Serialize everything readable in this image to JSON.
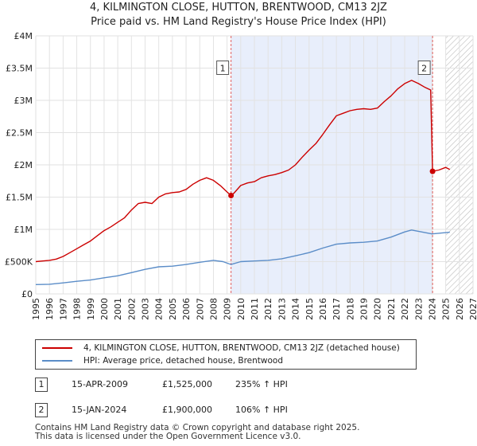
{
  "title": "4, KILMINGTON CLOSE, HUTTON, BRENTWOOD, CM13 2JZ",
  "subtitle": "Price paid vs. HM Land Registry's House Price Index (HPI)",
  "colors": {
    "property": "#cc0000",
    "hpi": "#5b8dc8",
    "shade": "#e8eefb",
    "marker_line": "#e06060"
  },
  "chart_data": {
    "type": "line",
    "title": "4, KILMINGTON CLOSE, HUTTON, BRENTWOOD, CM13 2JZ",
    "subtitle": "Price paid vs. HM Land Registry's House Price Index (HPI)",
    "xlim": [
      1995,
      2027
    ],
    "ylim": [
      0,
      4000000
    ],
    "x_ticks": [
      "1995",
      "1996",
      "1997",
      "1998",
      "1999",
      "2000",
      "2001",
      "2002",
      "2003",
      "2004",
      "2005",
      "2006",
      "2007",
      "2008",
      "2009",
      "2010",
      "2011",
      "2012",
      "2013",
      "2014",
      "2015",
      "2016",
      "2017",
      "2018",
      "2019",
      "2020",
      "2021",
      "2022",
      "2023",
      "2024",
      "2025",
      "2026",
      "2027"
    ],
    "y_ticks": [
      {
        "value": 0,
        "label": "£0"
      },
      {
        "value": 500000,
        "label": "£500K"
      },
      {
        "value": 1000000,
        "label": "£1M"
      },
      {
        "value": 1500000,
        "label": "£1.5M"
      },
      {
        "value": 2000000,
        "label": "£2M"
      },
      {
        "value": 2500000,
        "label": "£2.5M"
      },
      {
        "value": 3000000,
        "label": "£3M"
      },
      {
        "value": 3500000,
        "label": "£3.5M"
      },
      {
        "value": 4000000,
        "label": "£4M"
      }
    ],
    "grid": true,
    "shaded_period": [
      2009.29,
      2024.04
    ],
    "hatched_from": 2025.0,
    "series": [
      {
        "name": "4, KILMINGTON CLOSE, HUTTON, BRENTWOOD, CM13 2JZ (detached house)",
        "color": "#cc0000",
        "points": [
          [
            1995.0,
            500000
          ],
          [
            1995.5,
            510000
          ],
          [
            1996.0,
            520000
          ],
          [
            1996.5,
            540000
          ],
          [
            1997.0,
            580000
          ],
          [
            1997.5,
            640000
          ],
          [
            1998.0,
            700000
          ],
          [
            1998.5,
            760000
          ],
          [
            1999.0,
            820000
          ],
          [
            1999.5,
            900000
          ],
          [
            2000.0,
            980000
          ],
          [
            2000.5,
            1040000
          ],
          [
            2001.0,
            1110000
          ],
          [
            2001.5,
            1180000
          ],
          [
            2002.0,
            1300000
          ],
          [
            2002.5,
            1400000
          ],
          [
            2003.0,
            1420000
          ],
          [
            2003.5,
            1400000
          ],
          [
            2004.0,
            1500000
          ],
          [
            2004.5,
            1550000
          ],
          [
            2005.0,
            1570000
          ],
          [
            2005.5,
            1580000
          ],
          [
            2006.0,
            1620000
          ],
          [
            2006.5,
            1700000
          ],
          [
            2007.0,
            1760000
          ],
          [
            2007.5,
            1800000
          ],
          [
            2008.0,
            1760000
          ],
          [
            2008.5,
            1680000
          ],
          [
            2009.0,
            1580000
          ],
          [
            2009.29,
            1525000
          ],
          [
            2009.5,
            1560000
          ],
          [
            2010.0,
            1680000
          ],
          [
            2010.5,
            1720000
          ],
          [
            2011.0,
            1740000
          ],
          [
            2011.5,
            1800000
          ],
          [
            2012.0,
            1830000
          ],
          [
            2012.5,
            1850000
          ],
          [
            2013.0,
            1880000
          ],
          [
            2013.5,
            1920000
          ],
          [
            2014.0,
            2000000
          ],
          [
            2014.5,
            2120000
          ],
          [
            2015.0,
            2230000
          ],
          [
            2015.5,
            2330000
          ],
          [
            2016.0,
            2470000
          ],
          [
            2016.5,
            2620000
          ],
          [
            2017.0,
            2760000
          ],
          [
            2017.5,
            2800000
          ],
          [
            2018.0,
            2840000
          ],
          [
            2018.5,
            2860000
          ],
          [
            2019.0,
            2870000
          ],
          [
            2019.5,
            2860000
          ],
          [
            2020.0,
            2880000
          ],
          [
            2020.5,
            2980000
          ],
          [
            2021.0,
            3070000
          ],
          [
            2021.5,
            3180000
          ],
          [
            2022.0,
            3260000
          ],
          [
            2022.5,
            3310000
          ],
          [
            2023.0,
            3260000
          ],
          [
            2023.5,
            3200000
          ],
          [
            2023.9,
            3160000
          ],
          [
            2024.04,
            1900000
          ],
          [
            2024.5,
            1920000
          ],
          [
            2025.0,
            1960000
          ],
          [
            2025.3,
            1930000
          ]
        ]
      },
      {
        "name": "HPI: Average price, detached house, Brentwood",
        "color": "#5b8dc8",
        "points": [
          [
            1995.0,
            145000
          ],
          [
            1996.0,
            150000
          ],
          [
            1997.0,
            170000
          ],
          [
            1998.0,
            195000
          ],
          [
            1999.0,
            215000
          ],
          [
            2000.0,
            250000
          ],
          [
            2001.0,
            280000
          ],
          [
            2002.0,
            330000
          ],
          [
            2003.0,
            380000
          ],
          [
            2004.0,
            420000
          ],
          [
            2005.0,
            430000
          ],
          [
            2006.0,
            455000
          ],
          [
            2007.0,
            490000
          ],
          [
            2008.0,
            520000
          ],
          [
            2008.7,
            500000
          ],
          [
            2009.29,
            455000
          ],
          [
            2010.0,
            500000
          ],
          [
            2011.0,
            510000
          ],
          [
            2012.0,
            520000
          ],
          [
            2013.0,
            545000
          ],
          [
            2014.0,
            590000
          ],
          [
            2015.0,
            640000
          ],
          [
            2016.0,
            710000
          ],
          [
            2017.0,
            770000
          ],
          [
            2018.0,
            790000
          ],
          [
            2019.0,
            800000
          ],
          [
            2020.0,
            820000
          ],
          [
            2021.0,
            880000
          ],
          [
            2022.0,
            960000
          ],
          [
            2022.5,
            990000
          ],
          [
            2023.0,
            970000
          ],
          [
            2024.0,
            930000
          ],
          [
            2025.0,
            950000
          ],
          [
            2025.3,
            955000
          ]
        ]
      }
    ],
    "sales": [
      {
        "label": "1",
        "x": 2009.29,
        "y": 1525000
      },
      {
        "label": "2",
        "x": 2024.04,
        "y": 1900000
      }
    ]
  },
  "legend": {
    "property": "4, KILMINGTON CLOSE, HUTTON, BRENTWOOD, CM13 2JZ (detached house)",
    "hpi": "HPI: Average price, detached house, Brentwood"
  },
  "annotations": [
    {
      "num": "1",
      "date": "15-APR-2009",
      "price": "£1,525,000",
      "pct": "235% ↑ HPI"
    },
    {
      "num": "2",
      "date": "15-JAN-2024",
      "price": "£1,900,000",
      "pct": "106% ↑ HPI"
    }
  ],
  "footer": {
    "line1": "Contains HM Land Registry data © Crown copyright and database right 2025.",
    "line2": "This data is licensed under the Open Government Licence v3.0."
  }
}
